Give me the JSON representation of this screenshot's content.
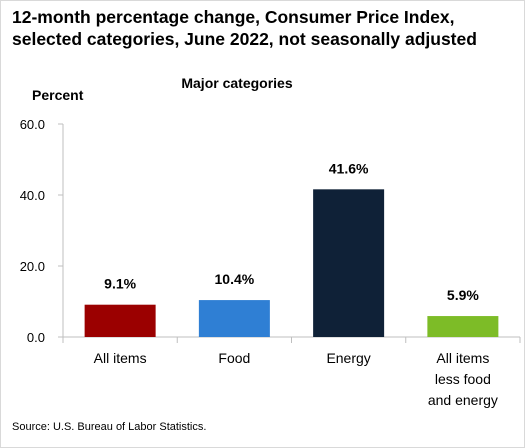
{
  "header": {
    "title_line1": "12-month percentage change, Consumer Price Index,",
    "title_line2": "selected categories, June 2022, not seasonally adjusted"
  },
  "source": "Source: U.S. Bureau of Labor Statistics.",
  "chart_data": {
    "type": "bar",
    "subtitle": "Major categories",
    "ylabel": "Percent",
    "xlabel": "",
    "ylim": [
      0,
      60
    ],
    "yticks": [
      "0.0",
      "20.0",
      "40.0",
      "60.0"
    ],
    "ytick_values": [
      0,
      20,
      40,
      60
    ],
    "categories": [
      [
        "All items"
      ],
      [
        "Food"
      ],
      [
        "Energy"
      ],
      [
        "All items",
        "less food",
        "and energy"
      ]
    ],
    "values": [
      9.1,
      10.4,
      41.6,
      5.9
    ],
    "data_labels": [
      "9.1%",
      "10.4%",
      "41.6%",
      "5.9%"
    ],
    "colors": [
      "#9b0000",
      "#2f7fd4",
      "#0f2137",
      "#7dbc27"
    ],
    "grid": false,
    "legend": "none"
  }
}
